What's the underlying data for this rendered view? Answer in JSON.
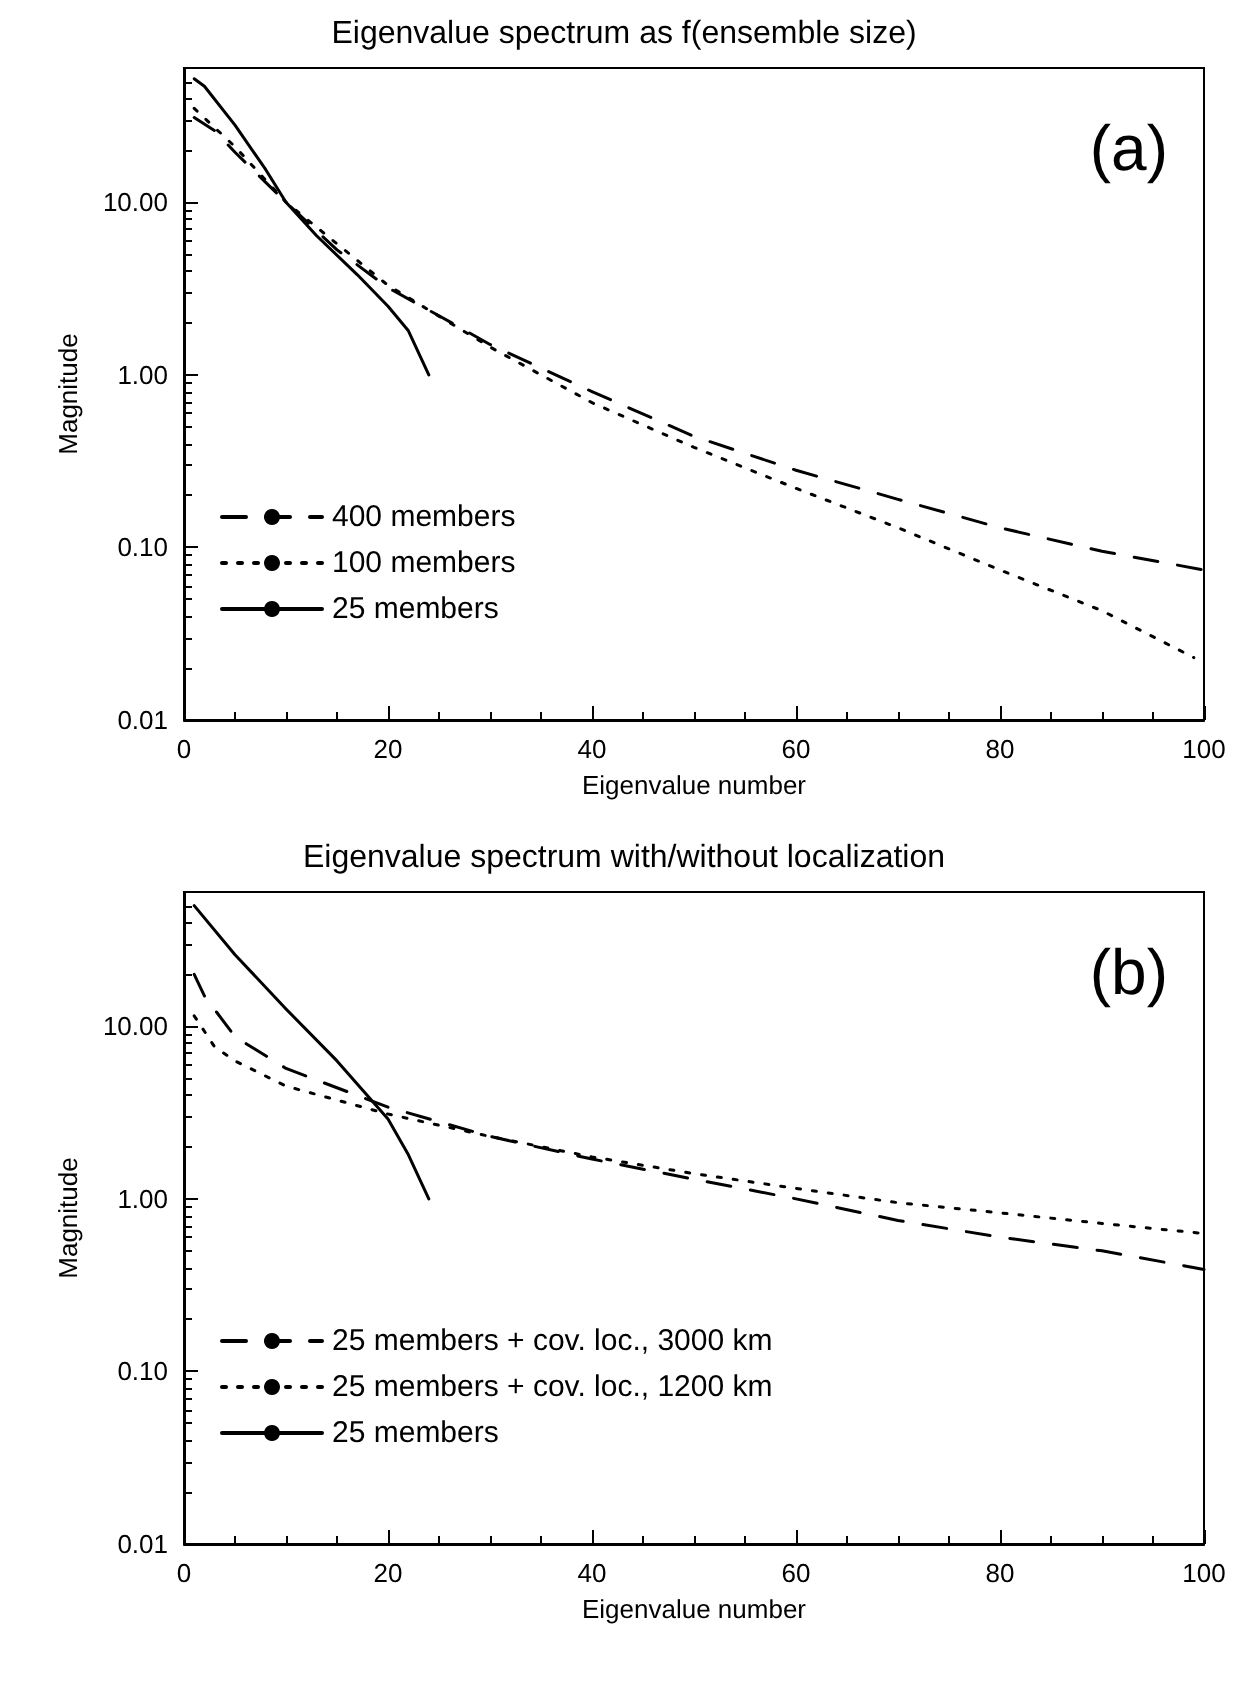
{
  "chart_data": [
    {
      "type": "line",
      "title": "Eigenvalue spectrum as f(ensemble size)",
      "xlabel": "Eigenvalue number",
      "ylabel": "Magnitude",
      "annotations": [
        "(a)"
      ],
      "log": "y",
      "grid": false,
      "legend": "bottom left",
      "xlim": [
        0,
        100
      ],
      "xticks": [
        0,
        20,
        40,
        60,
        80,
        100
      ],
      "ylim": [
        0.01,
        60
      ],
      "yticks": [
        {
          "value": 0.01,
          "label": "0.01"
        },
        {
          "value": 0.1,
          "label": "0.10"
        },
        {
          "value": 1,
          "label": "1.00"
        },
        {
          "value": 10,
          "label": "10.00"
        }
      ],
      "series": [
        {
          "name": "400 members",
          "color": "#000000",
          "line_style": "dashed",
          "x": [
            1,
            3,
            5,
            10,
            15,
            20,
            25,
            30,
            40,
            50,
            60,
            70,
            80,
            90,
            100
          ],
          "values": [
            31,
            26,
            19.5,
            10,
            5.3,
            3.2,
            2.2,
            1.5,
            0.8,
            0.44,
            0.28,
            0.19,
            0.13,
            0.095,
            0.074
          ]
        },
        {
          "name": "100 members",
          "color": "#000000",
          "line_style": "dotted",
          "x": [
            1,
            5,
            10,
            20,
            30,
            40,
            50,
            60,
            70,
            80,
            90,
            99
          ],
          "values": [
            35,
            21,
            10,
            3.3,
            1.45,
            0.69,
            0.38,
            0.22,
            0.13,
            0.074,
            0.043,
            0.023
          ]
        },
        {
          "name": "25 members",
          "color": "#000000",
          "line_style": "solid",
          "x": [
            1,
            2,
            5,
            8,
            10,
            13,
            17,
            20,
            22,
            24
          ],
          "values": [
            52,
            47,
            28,
            15.5,
            10,
            6.4,
            3.8,
            2.5,
            1.8,
            1.0
          ]
        }
      ]
    },
    {
      "type": "line",
      "title": "Eigenvalue spectrum with/without localization",
      "xlabel": "Eigenvalue number",
      "ylabel": "Magnitude",
      "annotations": [
        "(b)"
      ],
      "log": "y",
      "grid": false,
      "legend": "bottom left",
      "xlim": [
        0,
        100
      ],
      "xticks": [
        0,
        20,
        40,
        60,
        80,
        100
      ],
      "ylim": [
        0.01,
        60
      ],
      "yticks": [
        {
          "value": 0.01,
          "label": "0.01"
        },
        {
          "value": 0.1,
          "label": "0.10"
        },
        {
          "value": 1,
          "label": "1.00"
        },
        {
          "value": 10,
          "label": "10.00"
        }
      ],
      "series": [
        {
          "name": "25 members + cov. loc., 3000 km",
          "color": "#000000",
          "line_style": "dashed",
          "x": [
            1,
            2,
            5,
            10,
            20,
            30,
            40,
            50,
            60,
            70,
            80,
            90,
            100
          ],
          "values": [
            20,
            15,
            8.7,
            5.7,
            3.4,
            2.3,
            1.7,
            1.3,
            1.0,
            0.75,
            0.6,
            0.5,
            0.39
          ]
        },
        {
          "name": "25 members + cov. loc., 1200 km",
          "color": "#000000",
          "line_style": "dotted",
          "x": [
            1,
            3,
            5,
            10,
            20,
            30,
            40,
            50,
            60,
            70,
            80,
            90,
            100
          ],
          "values": [
            11.5,
            7.6,
            6.3,
            4.5,
            3.1,
            2.3,
            1.75,
            1.4,
            1.15,
            0.95,
            0.83,
            0.72,
            0.63
          ]
        },
        {
          "name": "25 members",
          "color": "#000000",
          "line_style": "solid",
          "x": [
            1,
            5,
            10,
            15,
            20,
            22,
            24
          ],
          "values": [
            50,
            26,
            12.6,
            6.3,
            2.9,
            1.8,
            1.0
          ]
        }
      ]
    }
  ]
}
